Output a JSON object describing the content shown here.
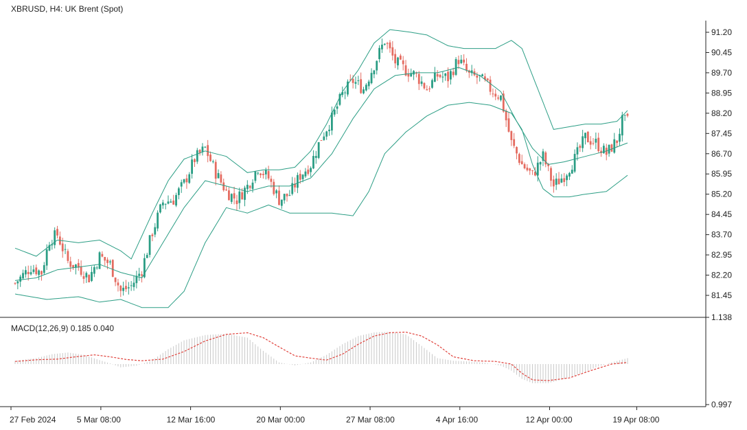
{
  "header": {
    "title": "XBRUSD, H4: UK Brent (Spot)",
    "macd_title": "MACD(12,26,9) 0.185 0.040"
  },
  "colors": {
    "up": "#2a9d84",
    "down": "#e46b60",
    "band": "#2a9d84",
    "macd_signal": "#e0403a",
    "macd_hist": "#c8c8c8",
    "axis": "#222222"
  },
  "chart_data": [
    {
      "type": "candlestick",
      "title": "XBRUSD, H4: UK Brent (Spot)",
      "indicators": [
        "Bollinger Bands"
      ],
      "ylim": [
        81.0,
        91.6
      ],
      "y_ticks": [
        91.2,
        90.45,
        89.7,
        88.95,
        88.2,
        87.45,
        86.7,
        85.95,
        85.2,
        84.45,
        83.7,
        82.95,
        82.2,
        81.45
      ],
      "x_ticks": [
        "27 Feb 2024",
        "5 Mar 08:00",
        "12 Mar 16:00",
        "20 Mar 00:00",
        "27 Mar 08:00",
        "4 Apr 16:00",
        "12 Apr 00:00",
        "19 Apr 08:00"
      ],
      "close_path": [
        [
          0,
          81.9
        ],
        [
          6,
          82.5
        ],
        [
          10,
          82.3
        ],
        [
          13,
          83.5
        ],
        [
          16,
          83.7
        ],
        [
          20,
          82.7
        ],
        [
          24,
          82.5
        ],
        [
          28,
          82.1
        ],
        [
          32,
          82.9
        ],
        [
          36,
          82.6
        ],
        [
          40,
          81.6
        ],
        [
          44,
          81.8
        ],
        [
          48,
          82.4
        ],
        [
          52,
          83.8
        ],
        [
          56,
          84.9
        ],
        [
          60,
          85.0
        ],
        [
          64,
          85.6
        ],
        [
          68,
          86.5
        ],
        [
          72,
          86.9
        ],
        [
          76,
          86.0
        ],
        [
          80,
          85.3
        ],
        [
          84,
          85.0
        ],
        [
          88,
          85.5
        ],
        [
          92,
          86.2
        ],
        [
          96,
          85.8
        ],
        [
          100,
          85.0
        ],
        [
          104,
          85.2
        ],
        [
          108,
          85.9
        ],
        [
          112,
          86.3
        ],
        [
          116,
          87.3
        ],
        [
          120,
          88.0
        ],
        [
          124,
          88.9
        ],
        [
          128,
          89.4
        ],
        [
          132,
          89.1
        ],
        [
          136,
          90.0
        ],
        [
          140,
          90.9
        ],
        [
          144,
          90.1
        ],
        [
          148,
          89.8
        ],
        [
          152,
          89.6
        ],
        [
          156,
          89.1
        ],
        [
          160,
          89.6
        ],
        [
          164,
          89.5
        ],
        [
          168,
          90.2
        ],
        [
          172,
          89.6
        ],
        [
          176,
          89.5
        ],
        [
          180,
          89.1
        ],
        [
          184,
          88.8
        ],
        [
          188,
          87.1
        ],
        [
          192,
          86.3
        ],
        [
          196,
          85.9
        ],
        [
          200,
          86.6
        ],
        [
          204,
          85.5
        ],
        [
          208,
          85.9
        ],
        [
          212,
          86.5
        ],
        [
          216,
          87.3
        ],
        [
          220,
          87.1
        ],
        [
          224,
          86.7
        ],
        [
          228,
          87.2
        ],
        [
          230,
          87.9
        ],
        [
          232,
          87.9
        ]
      ],
      "bands_approx": {
        "upper": [
          [
            0,
            83.2
          ],
          [
            8,
            82.9
          ],
          [
            16,
            83.5
          ],
          [
            24,
            83.4
          ],
          [
            32,
            83.5
          ],
          [
            40,
            83.1
          ],
          [
            44,
            82.8
          ],
          [
            52,
            84.5
          ],
          [
            58,
            85.7
          ],
          [
            64,
            86.5
          ],
          [
            72,
            86.8
          ],
          [
            80,
            86.6
          ],
          [
            88,
            86.0
          ],
          [
            94,
            86.1
          ],
          [
            100,
            86.1
          ],
          [
            106,
            86.2
          ],
          [
            112,
            86.8
          ],
          [
            118,
            87.8
          ],
          [
            124,
            89.0
          ],
          [
            130,
            89.8
          ],
          [
            136,
            90.8
          ],
          [
            142,
            91.3
          ],
          [
            150,
            91.2
          ],
          [
            156,
            91.1
          ],
          [
            164,
            90.7
          ],
          [
            170,
            90.6
          ],
          [
            176,
            90.6
          ],
          [
            182,
            90.6
          ],
          [
            188,
            90.9
          ],
          [
            192,
            90.6
          ],
          [
            196,
            89.6
          ],
          [
            200,
            88.6
          ],
          [
            204,
            87.6
          ],
          [
            210,
            87.7
          ],
          [
            216,
            87.8
          ],
          [
            222,
            87.8
          ],
          [
            228,
            87.9
          ],
          [
            232,
            88.3
          ]
        ],
        "middle": [
          [
            0,
            82.0
          ],
          [
            8,
            82.1
          ],
          [
            16,
            82.4
          ],
          [
            24,
            82.5
          ],
          [
            32,
            82.6
          ],
          [
            40,
            82.3
          ],
          [
            48,
            82.1
          ],
          [
            56,
            83.4
          ],
          [
            64,
            84.7
          ],
          [
            72,
            85.7
          ],
          [
            80,
            85.5
          ],
          [
            88,
            85.3
          ],
          [
            96,
            85.5
          ],
          [
            104,
            85.5
          ],
          [
            112,
            85.8
          ],
          [
            120,
            86.7
          ],
          [
            128,
            88.0
          ],
          [
            136,
            89.1
          ],
          [
            144,
            89.6
          ],
          [
            152,
            89.7
          ],
          [
            160,
            89.7
          ],
          [
            168,
            89.9
          ],
          [
            176,
            89.6
          ],
          [
            184,
            89.0
          ],
          [
            190,
            87.9
          ],
          [
            196,
            86.9
          ],
          [
            202,
            86.3
          ],
          [
            208,
            86.4
          ],
          [
            216,
            86.6
          ],
          [
            224,
            86.8
          ],
          [
            232,
            87.1
          ]
        ],
        "lower": [
          [
            0,
            81.5
          ],
          [
            12,
            81.3
          ],
          [
            24,
            81.4
          ],
          [
            32,
            81.2
          ],
          [
            40,
            81.3
          ],
          [
            48,
            81.0
          ],
          [
            58,
            81.0
          ],
          [
            64,
            81.6
          ],
          [
            72,
            83.4
          ],
          [
            80,
            84.7
          ],
          [
            88,
            84.5
          ],
          [
            96,
            84.8
          ],
          [
            104,
            84.5
          ],
          [
            112,
            84.5
          ],
          [
            120,
            84.5
          ],
          [
            128,
            84.4
          ],
          [
            134,
            85.3
          ],
          [
            140,
            86.7
          ],
          [
            148,
            87.5
          ],
          [
            156,
            88.1
          ],
          [
            164,
            88.5
          ],
          [
            172,
            88.6
          ],
          [
            180,
            88.5
          ],
          [
            188,
            88.2
          ],
          [
            192,
            87.6
          ],
          [
            196,
            86.3
          ],
          [
            200,
            85.4
          ],
          [
            204,
            85.1
          ],
          [
            210,
            85.1
          ],
          [
            216,
            85.2
          ],
          [
            224,
            85.3
          ],
          [
            232,
            85.9
          ]
        ]
      }
    },
    {
      "type": "macd",
      "title": "MACD(12,26,9) 0.185 0.040",
      "y_ticks": [
        1.138,
        0.997
      ],
      "signal_path": [
        [
          0,
          0.08
        ],
        [
          8,
          0.13
        ],
        [
          16,
          0.15
        ],
        [
          24,
          0.23
        ],
        [
          30,
          0.28
        ],
        [
          36,
          0.22
        ],
        [
          42,
          0.14
        ],
        [
          48,
          0.1
        ],
        [
          56,
          0.15
        ],
        [
          64,
          0.38
        ],
        [
          72,
          0.7
        ],
        [
          80,
          0.9
        ],
        [
          88,
          0.95
        ],
        [
          94,
          0.8
        ],
        [
          100,
          0.52
        ],
        [
          106,
          0.25
        ],
        [
          112,
          0.18
        ],
        [
          118,
          0.12
        ],
        [
          124,
          0.3
        ],
        [
          130,
          0.6
        ],
        [
          136,
          0.85
        ],
        [
          142,
          0.95
        ],
        [
          148,
          0.97
        ],
        [
          154,
          0.85
        ],
        [
          160,
          0.58
        ],
        [
          166,
          0.22
        ],
        [
          174,
          0.1
        ],
        [
          182,
          0.08
        ],
        [
          188,
          0.0
        ],
        [
          192,
          -0.28
        ],
        [
          196,
          -0.48
        ],
        [
          202,
          -0.5
        ],
        [
          210,
          -0.42
        ],
        [
          218,
          -0.2
        ],
        [
          226,
          0.0
        ],
        [
          232,
          0.05
        ]
      ],
      "hist_path": [
        [
          0,
          0.1
        ],
        [
          8,
          0.18
        ],
        [
          14,
          0.3
        ],
        [
          20,
          0.35
        ],
        [
          26,
          0.28
        ],
        [
          32,
          0.12
        ],
        [
          36,
          0.02
        ],
        [
          40,
          -0.1
        ],
        [
          46,
          -0.05
        ],
        [
          52,
          0.12
        ],
        [
          58,
          0.45
        ],
        [
          64,
          0.72
        ],
        [
          72,
          0.88
        ],
        [
          80,
          0.92
        ],
        [
          88,
          0.8
        ],
        [
          94,
          0.4
        ],
        [
          100,
          0.05
        ],
        [
          106,
          -0.04
        ],
        [
          112,
          0.05
        ],
        [
          118,
          0.28
        ],
        [
          124,
          0.6
        ],
        [
          130,
          0.85
        ],
        [
          136,
          0.96
        ],
        [
          142,
          0.98
        ],
        [
          148,
          0.9
        ],
        [
          154,
          0.55
        ],
        [
          160,
          0.18
        ],
        [
          166,
          0.1
        ],
        [
          172,
          0.08
        ],
        [
          178,
          0.04
        ],
        [
          184,
          -0.05
        ],
        [
          188,
          -0.2
        ],
        [
          192,
          -0.45
        ],
        [
          196,
          -0.58
        ],
        [
          202,
          -0.58
        ],
        [
          208,
          -0.45
        ],
        [
          214,
          -0.3
        ],
        [
          220,
          -0.1
        ],
        [
          226,
          0.05
        ],
        [
          232,
          0.18
        ]
      ]
    }
  ]
}
